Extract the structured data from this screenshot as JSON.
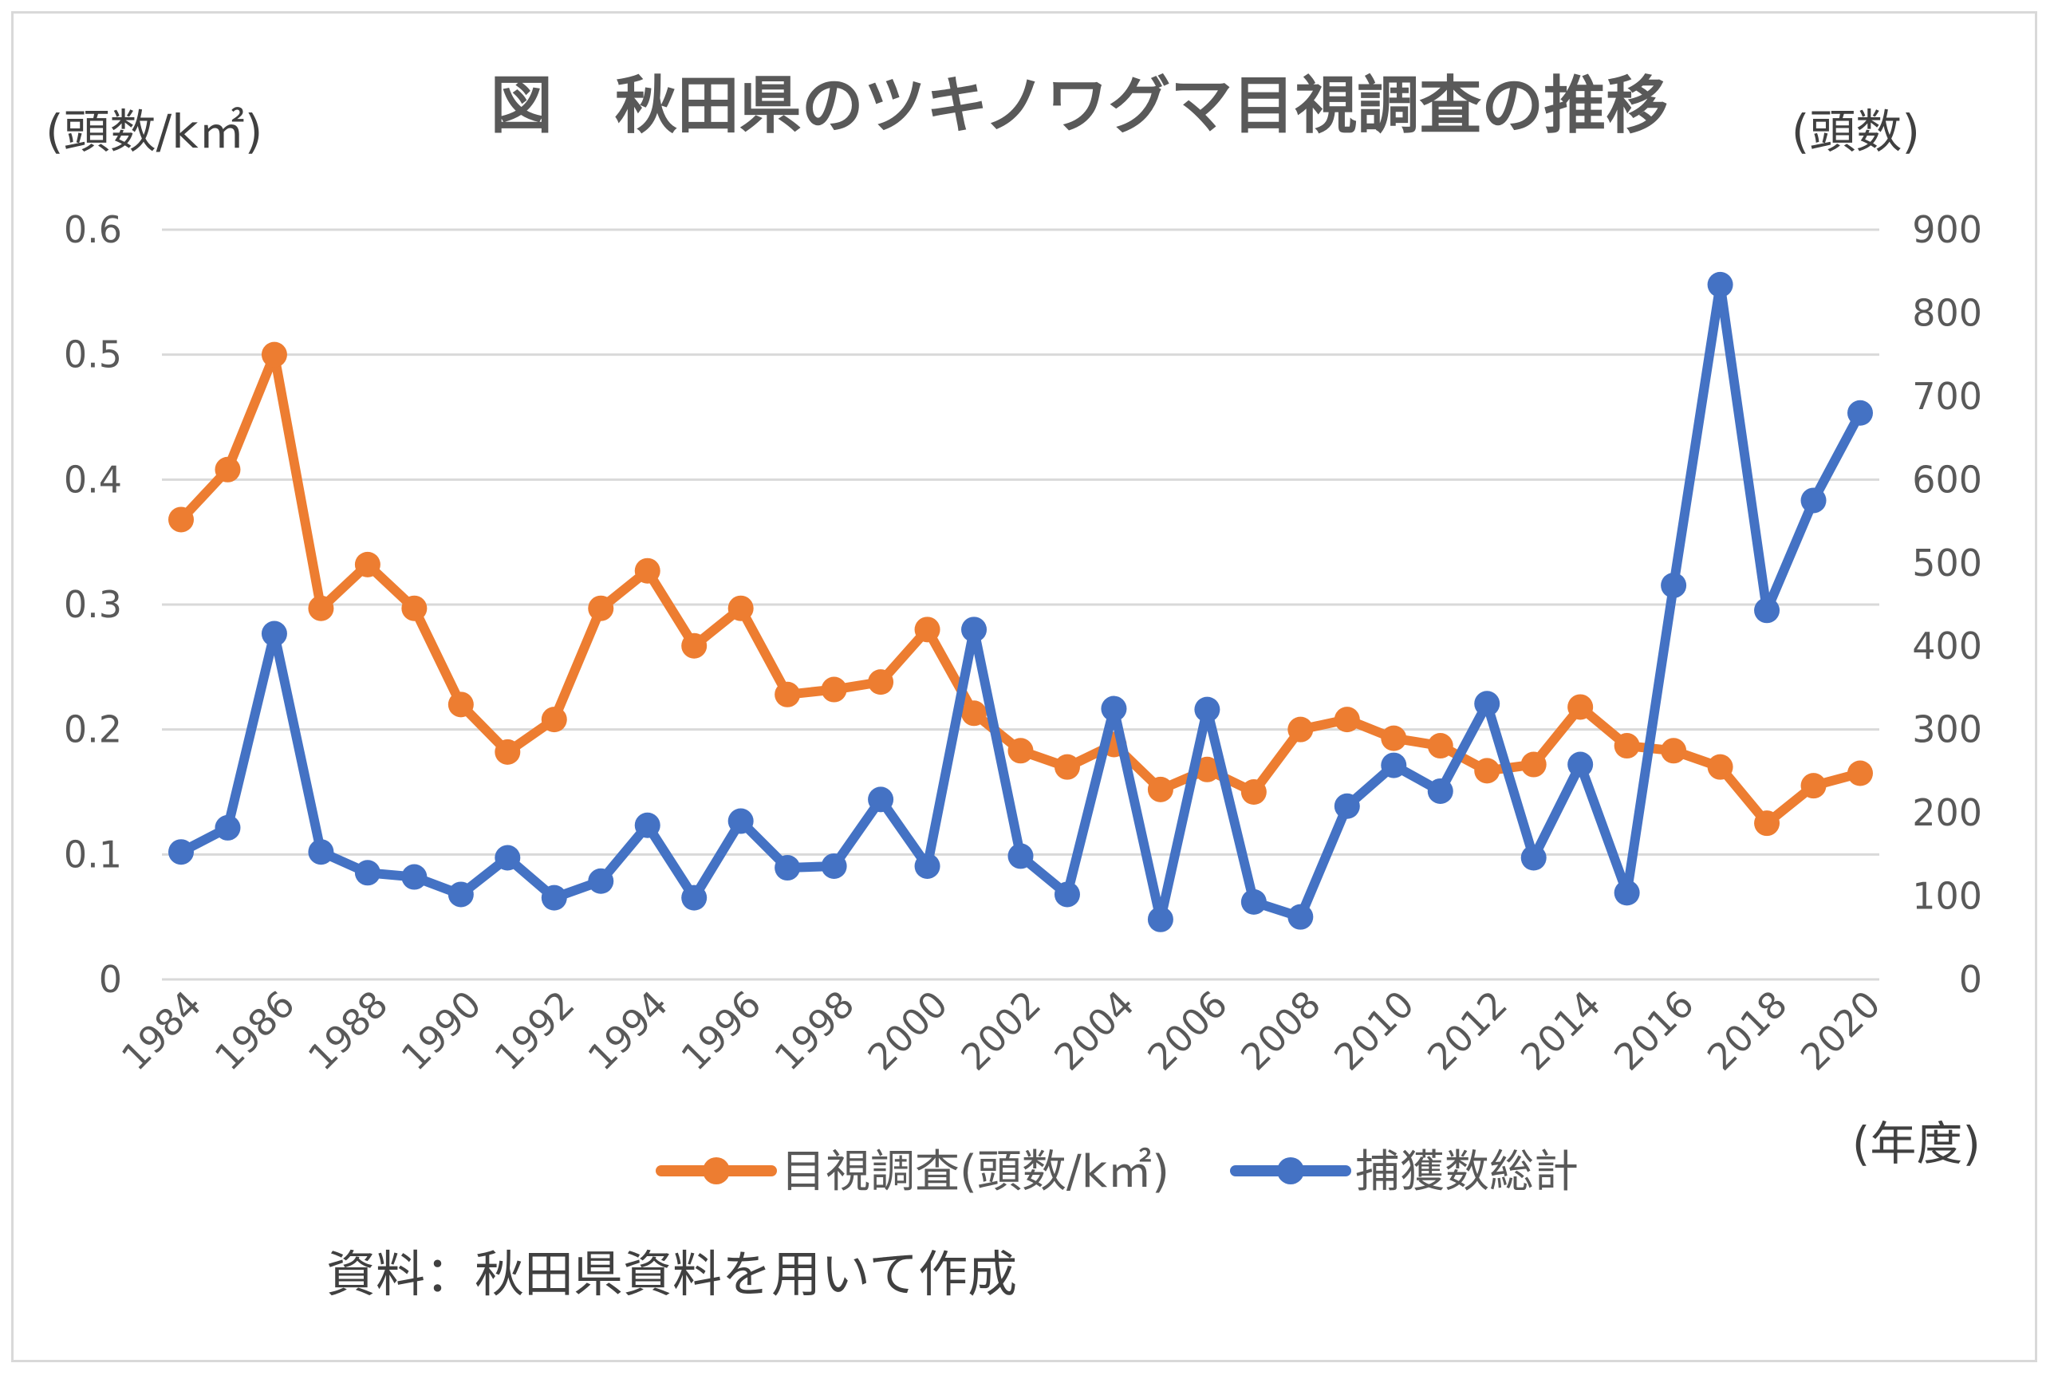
{
  "chart_data": {
    "type": "line",
    "title": "図　秋田県のツキノワグマ目視調査の推移",
    "left_axis_label": "(頭数/k㎡)",
    "right_axis_label": "(頭数)",
    "x_axis_label": "(年度)",
    "source_note": "資料：秋田県資料を用いて作成",
    "grid": true,
    "legend_position": "bottom",
    "x": [
      1984,
      1985,
      1986,
      1987,
      1988,
      1989,
      1990,
      1991,
      1992,
      1993,
      1994,
      1995,
      1996,
      1997,
      1998,
      1999,
      2000,
      2001,
      2002,
      2003,
      2004,
      2005,
      2006,
      2007,
      2008,
      2009,
      2010,
      2011,
      2012,
      2013,
      2014,
      2015,
      2016,
      2017,
      2018,
      2019,
      2020
    ],
    "x_tick_labels": [
      "1984",
      "1986",
      "1988",
      "1990",
      "1992",
      "1994",
      "1996",
      "1998",
      "2000",
      "2002",
      "2004",
      "2006",
      "2008",
      "2010",
      "2012",
      "2014",
      "2016",
      "2018",
      "2020"
    ],
    "y_left": {
      "ylim": [
        0,
        0.6
      ],
      "ticks": [
        "0",
        "0.1",
        "0.2",
        "0.3",
        "0.4",
        "0.5",
        "0.6"
      ]
    },
    "y_right": {
      "ylim": [
        0,
        900
      ],
      "ticks": [
        "0",
        "100",
        "200",
        "300",
        "400",
        "500",
        "600",
        "700",
        "800",
        "900"
      ]
    },
    "series": [
      {
        "name": "目視調査(頭数/k㎡)",
        "axis": "left",
        "color": "#ED7D31",
        "values": [
          0.368,
          0.408,
          0.5,
          0.297,
          0.332,
          0.297,
          0.22,
          0.182,
          0.208,
          0.297,
          0.327,
          0.267,
          0.297,
          0.228,
          0.232,
          0.238,
          0.28,
          0.213,
          0.183,
          0.17,
          0.188,
          0.152,
          0.168,
          0.15,
          0.2,
          0.208,
          0.193,
          0.187,
          0.167,
          0.172,
          0.218,
          0.187,
          0.183,
          0.17,
          0.125,
          0.155,
          0.165
        ]
      },
      {
        "name": "捕獲数総計",
        "axis": "right",
        "color": "#4472C4",
        "values": [
          153,
          182,
          415,
          153,
          128,
          123,
          102,
          146,
          98,
          118,
          185,
          98,
          190,
          134,
          136,
          216,
          136,
          420,
          148,
          102,
          325,
          72,
          324,
          93,
          75,
          208,
          257,
          226,
          331,
          146,
          258,
          104,
          473,
          834,
          443,
          575,
          680
        ]
      }
    ]
  }
}
